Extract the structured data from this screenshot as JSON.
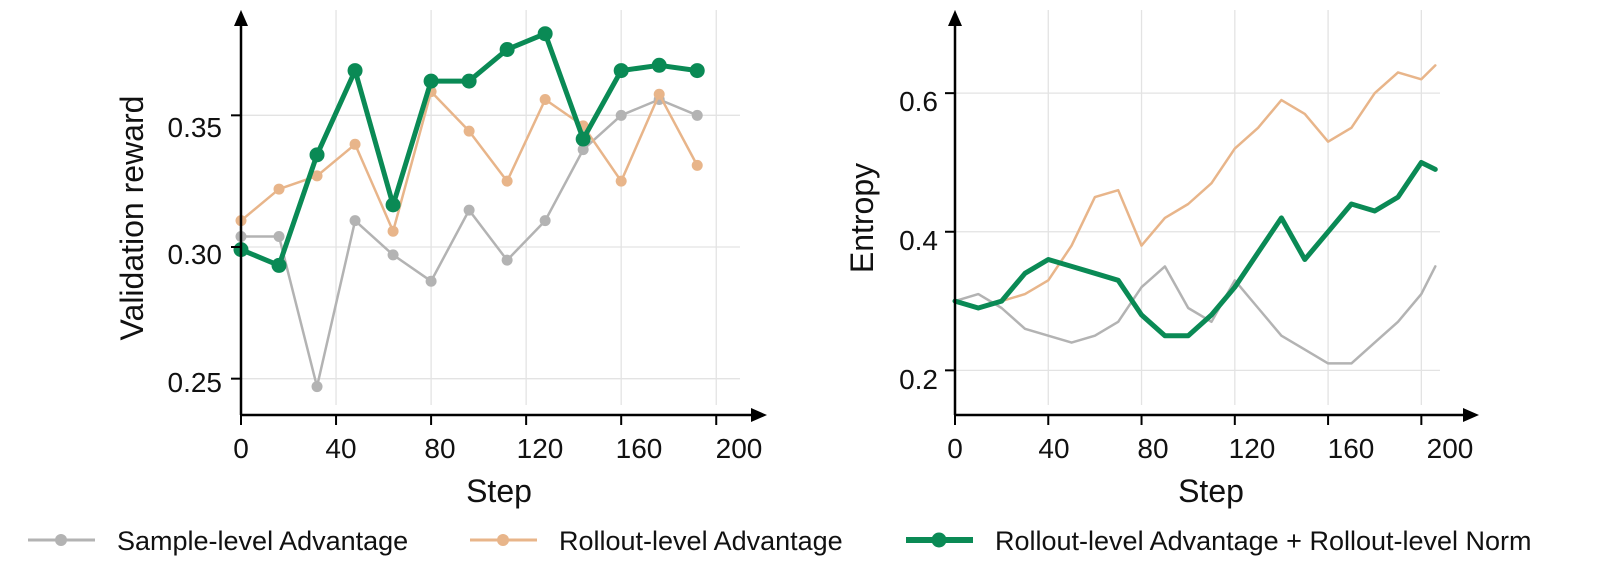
{
  "chart_data": [
    {
      "type": "line",
      "xlabel": "Step",
      "ylabel": "Validation reward",
      "xlim": [
        0,
        210
      ],
      "ylim": [
        0.24,
        0.39
      ],
      "xticks": [
        "0",
        "40",
        "80",
        "120",
        "160",
        "200"
      ],
      "yticks": [
        "0.25",
        "0.30",
        "0.35"
      ],
      "grid": true,
      "series": [
        {
          "name": "Sample-level Advantage",
          "color": "#b3b3b3",
          "marker": "circle",
          "x": [
            0,
            16,
            32,
            48,
            64,
            80,
            96,
            112,
            128,
            144,
            160,
            176,
            192
          ],
          "y": [
            0.304,
            0.304,
            0.247,
            0.31,
            0.297,
            0.287,
            0.314,
            0.295,
            0.31,
            0.337,
            0.35,
            0.356,
            0.35
          ]
        },
        {
          "name": "Rollout-level Advantage",
          "color": "#e8b58a",
          "marker": "circle",
          "x": [
            0,
            16,
            32,
            48,
            64,
            80,
            96,
            112,
            128,
            144,
            160,
            176,
            192
          ],
          "y": [
            0.31,
            0.322,
            0.327,
            0.339,
            0.306,
            0.359,
            0.344,
            0.325,
            0.356,
            0.346,
            0.325,
            0.358,
            0.331
          ]
        },
        {
          "name": "Rollout-level Advantage + Rollout-level Norm",
          "color": "#0a8a55",
          "marker": "circle",
          "x": [
            0,
            16,
            32,
            48,
            64,
            80,
            96,
            112,
            128,
            144,
            160,
            176,
            192
          ],
          "y": [
            0.299,
            0.293,
            0.335,
            0.367,
            0.316,
            0.363,
            0.363,
            0.375,
            0.381,
            0.341,
            0.367,
            0.369,
            0.367
          ]
        }
      ]
    },
    {
      "type": "line",
      "xlabel": "Step",
      "ylabel": "Entropy",
      "xlim": [
        0,
        208
      ],
      "ylim": [
        0.15,
        0.72
      ],
      "xticks": [
        "0",
        "40",
        "80",
        "120",
        "160",
        "200"
      ],
      "yticks": [
        "0.2",
        "0.4",
        "0.6"
      ],
      "grid": true,
      "series": [
        {
          "name": "Sample-level Advantage",
          "color": "#b3b3b3",
          "x": [
            0,
            10,
            20,
            30,
            40,
            50,
            60,
            70,
            80,
            90,
            100,
            110,
            120,
            130,
            140,
            150,
            160,
            170,
            180,
            190,
            200,
            206
          ],
          "y": [
            0.3,
            0.31,
            0.29,
            0.26,
            0.25,
            0.24,
            0.25,
            0.27,
            0.32,
            0.35,
            0.29,
            0.27,
            0.33,
            0.29,
            0.25,
            0.23,
            0.21,
            0.21,
            0.24,
            0.27,
            0.31,
            0.35
          ]
        },
        {
          "name": "Rollout-level Advantage",
          "color": "#e8b58a",
          "x": [
            0,
            10,
            20,
            30,
            40,
            50,
            60,
            70,
            80,
            90,
            100,
            110,
            120,
            130,
            140,
            150,
            160,
            170,
            180,
            190,
            200,
            206
          ],
          "y": [
            0.3,
            0.29,
            0.3,
            0.31,
            0.33,
            0.38,
            0.45,
            0.46,
            0.38,
            0.42,
            0.44,
            0.47,
            0.52,
            0.55,
            0.59,
            0.57,
            0.53,
            0.55,
            0.6,
            0.63,
            0.62,
            0.64
          ]
        },
        {
          "name": "Rollout-level Advantage + Rollout-level Norm",
          "color": "#0a8a55",
          "x": [
            0,
            10,
            20,
            30,
            40,
            50,
            60,
            70,
            80,
            90,
            100,
            110,
            120,
            130,
            140,
            150,
            160,
            170,
            180,
            190,
            200,
            206
          ],
          "y": [
            0.3,
            0.29,
            0.3,
            0.34,
            0.36,
            0.35,
            0.34,
            0.33,
            0.28,
            0.25,
            0.25,
            0.28,
            0.32,
            0.37,
            0.42,
            0.36,
            0.4,
            0.44,
            0.43,
            0.45,
            0.5,
            0.49
          ]
        }
      ]
    }
  ],
  "legend": {
    "placement": "bottom",
    "items": [
      "Sample-level Advantage",
      "Rollout-level Advantage",
      "Rollout-level Advantage + Rollout-level Norm"
    ]
  }
}
